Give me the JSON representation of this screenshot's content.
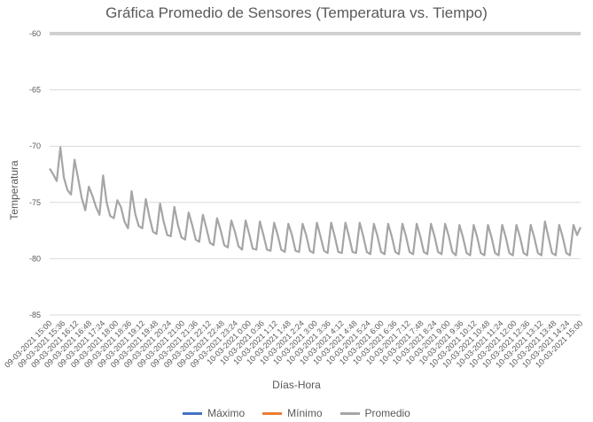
{
  "chart_data": {
    "type": "line",
    "title": "Gráfica Promedio de Sensores (Temperatura vs. Tiempo)",
    "xlabel": "Días-Hora",
    "ylabel": "Temperatura",
    "ylim": [
      -85,
      -60
    ],
    "yticks": [
      -60,
      -65,
      -70,
      -75,
      -80,
      -85
    ],
    "grid": true,
    "legend_position": "bottom",
    "x_tick_labels": [
      "09-03-2021 15:00",
      "09-03-2021 15:36",
      "09-03-2021 16:12",
      "09-03-2021 16:48",
      "09-03-2021 17:24",
      "09-03-2021 18:00",
      "09-03-2021 18:36",
      "09-03-2021 19:12",
      "09-03-2021 19:48",
      "09-03-2021 20:24",
      "09-03-2021 21:00",
      "09-03-2021 21:36",
      "09-03-2021 22:12",
      "09-03-2021 22:48",
      "09-03-2021 23:24",
      "10-03-2021 0:00",
      "10-03-2021 0:36",
      "10-03-2021 1:12",
      "10-03-2021 1:48",
      "10-03-2021 2:24",
      "10-03-2021 3:00",
      "10-03-2021 3:36",
      "10-03-2021 4:12",
      "10-03-2021 4:48",
      "10-03-2021 5:24",
      "10-03-2021 6:00",
      "10-03-2021 6:36",
      "10-03-2021 7:12",
      "10-03-2021 7:48",
      "10-03-2021 8:24",
      "10-03-2021 9:00",
      "10-03-2021 9:36",
      "10-03-2021 10:12",
      "10-03-2021 10:48",
      "10-03-2021 11:24",
      "10-03-2021 12:00",
      "10-03-2021 12:36",
      "10-03-2021 13:12",
      "10-03-2021 13:48",
      "10-03-2021 14:24",
      "10-03-2021 15:00"
    ],
    "series": [
      {
        "name": "Máximo",
        "color": "#4472c4",
        "values": [
          -60,
          -60
        ]
      },
      {
        "name": "Mínimo",
        "color": "#ed7d31",
        "values": [
          -60,
          -60
        ]
      },
      {
        "name": "Promedio",
        "color": "#a5a5a5",
        "values": [
          -72.0,
          -72.5,
          -73.1,
          -70.1,
          -72.8,
          -73.9,
          -74.3,
          -71.2,
          -72.9,
          -74.6,
          -75.7,
          -73.6,
          -74.4,
          -75.4,
          -76.1,
          -72.6,
          -75.0,
          -76.2,
          -76.4,
          -74.8,
          -75.4,
          -76.7,
          -77.3,
          -74.0,
          -76.0,
          -77.1,
          -77.3,
          -74.7,
          -76.3,
          -77.6,
          -77.8,
          -75.1,
          -76.7,
          -77.9,
          -78.0,
          -75.4,
          -77.0,
          -78.1,
          -78.3,
          -75.9,
          -77.0,
          -78.3,
          -78.5,
          -76.1,
          -77.3,
          -78.6,
          -78.8,
          -76.4,
          -77.5,
          -78.8,
          -79.0,
          -76.6,
          -77.6,
          -78.9,
          -79.2,
          -76.6,
          -77.8,
          -79.1,
          -79.2,
          -76.7,
          -77.9,
          -79.2,
          -79.3,
          -76.8,
          -77.9,
          -79.2,
          -79.4,
          -76.9,
          -77.9,
          -79.3,
          -79.4,
          -76.9,
          -77.9,
          -79.3,
          -79.5,
          -76.8,
          -78.0,
          -79.3,
          -79.5,
          -76.8,
          -78.0,
          -79.4,
          -79.5,
          -76.8,
          -78.0,
          -79.4,
          -79.5,
          -76.8,
          -78.0,
          -79.4,
          -79.6,
          -76.9,
          -78.0,
          -79.4,
          -79.6,
          -76.9,
          -78.0,
          -79.4,
          -79.6,
          -76.9,
          -78.0,
          -79.4,
          -79.6,
          -76.9,
          -78.0,
          -79.4,
          -79.6,
          -76.9,
          -78.0,
          -79.4,
          -79.6,
          -76.9,
          -78.0,
          -79.4,
          -79.7,
          -77.0,
          -78.1,
          -79.5,
          -79.7,
          -77.0,
          -78.1,
          -79.5,
          -79.7,
          -77.0,
          -78.1,
          -79.5,
          -79.7,
          -77.0,
          -78.1,
          -79.5,
          -79.7,
          -77.0,
          -78.1,
          -79.5,
          -79.7,
          -77.0,
          -78.1,
          -79.5,
          -79.7,
          -76.7,
          -78.1,
          -79.5,
          -79.7,
          -77.0,
          -78.1,
          -79.5,
          -79.7,
          -77.0,
          -77.9,
          -77.2
        ]
      }
    ]
  }
}
